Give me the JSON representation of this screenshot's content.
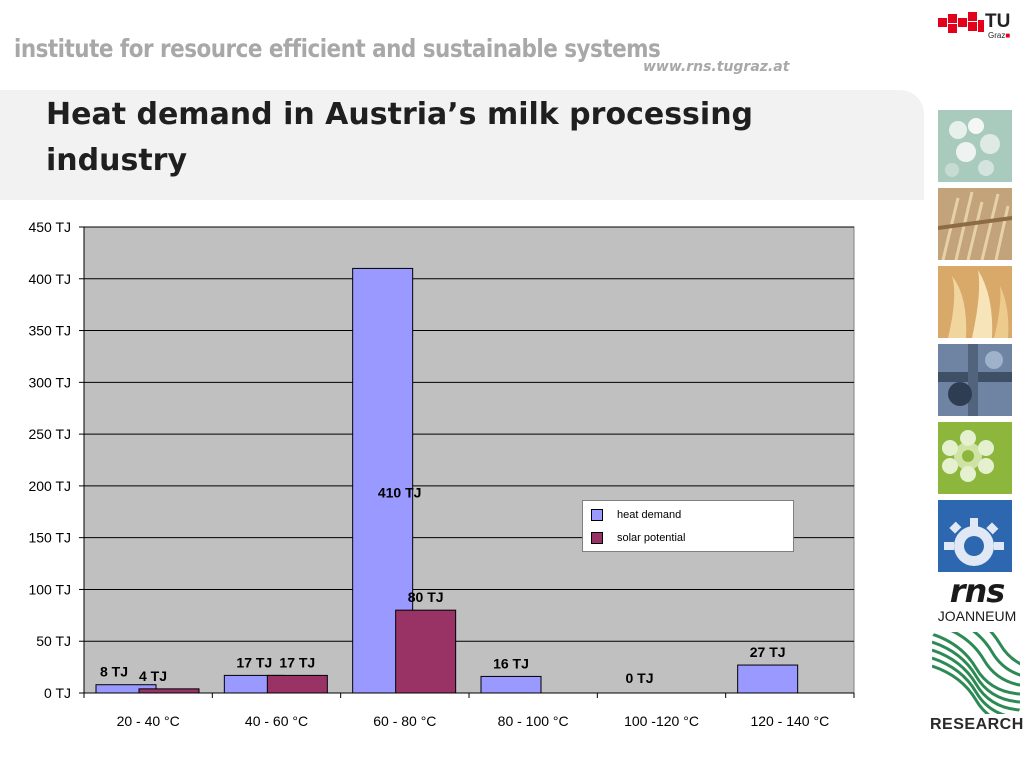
{
  "header": {
    "institute": "institute for resource efficient and sustainable systems",
    "url": "www.rns.tugraz.at",
    "tu": "TU",
    "graz": "Graz"
  },
  "title": "Heat demand in Austria’s milk processing industry",
  "sidebar": {
    "rns": "rns",
    "joanneum": "JOANNEUM",
    "research": "RESEARCH"
  },
  "chart_data": {
    "type": "bar",
    "title": "",
    "xlabel": "",
    "ylabel": "",
    "ylim": [
      0,
      450
    ],
    "y_ticks": [
      0,
      50,
      100,
      150,
      200,
      250,
      300,
      350,
      400,
      450
    ],
    "y_tick_labels": [
      "0 TJ",
      "50 TJ",
      "100 TJ",
      "150 TJ",
      "200 TJ",
      "250 TJ",
      "300 TJ",
      "350 TJ",
      "400 TJ",
      "450 TJ"
    ],
    "categories": [
      "20 - 40 °C",
      "40 - 60 °C",
      "60 - 80 °C",
      "80 - 100 °C",
      "100 -120 °C",
      "120 - 140 °C"
    ],
    "series": [
      {
        "name": "heat demand",
        "color": "#9999ff",
        "values": [
          8,
          17,
          410,
          16,
          0,
          27
        ],
        "labels": [
          "8 TJ",
          "17 TJ",
          "410 TJ",
          "16 TJ",
          "0 TJ",
          "27 TJ"
        ]
      },
      {
        "name": "solar potential",
        "color": "#993366",
        "values": [
          4,
          17,
          80,
          0,
          0,
          0
        ],
        "labels": [
          "4 TJ",
          "17 TJ",
          "80 TJ",
          "",
          "",
          ""
        ]
      }
    ],
    "grid": true,
    "plot_background": "#c0c0c0",
    "legend": "top-right"
  }
}
